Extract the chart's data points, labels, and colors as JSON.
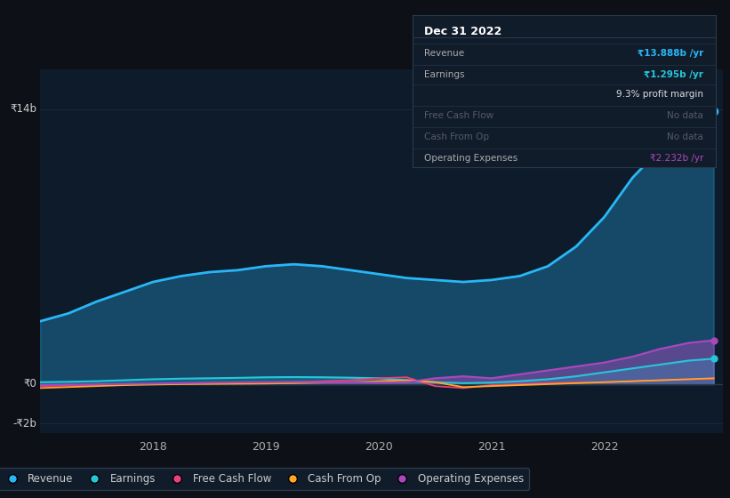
{
  "bg_color": "#0d1117",
  "chart_bg": "#0d1b2a",
  "grid_color": "#1a2a3a",
  "revenue_color": "#29b6f6",
  "earnings_color": "#26c6da",
  "fcf_color": "#ec407a",
  "cashfromop_color": "#ffa726",
  "opex_color": "#ab47bc",
  "legend_labels": [
    "Revenue",
    "Earnings",
    "Free Cash Flow",
    "Cash From Op",
    "Operating Expenses"
  ],
  "legend_colors": [
    "#29b6f6",
    "#26c6da",
    "#ec407a",
    "#ffa726",
    "#ab47bc"
  ],
  "time_points": [
    2017.0,
    2017.25,
    2017.5,
    2017.75,
    2018.0,
    2018.25,
    2018.5,
    2018.75,
    2019.0,
    2019.25,
    2019.5,
    2019.75,
    2020.0,
    2020.25,
    2020.5,
    2020.75,
    2021.0,
    2021.25,
    2021.5,
    2021.75,
    2022.0,
    2022.25,
    2022.5,
    2022.75,
    2022.97
  ],
  "revenue": [
    3200000000,
    3600000000,
    4200000000,
    4700000000,
    5200000000,
    5500000000,
    5700000000,
    5800000000,
    6000000000,
    6100000000,
    6000000000,
    5800000000,
    5600000000,
    5400000000,
    5300000000,
    5200000000,
    5300000000,
    5500000000,
    6000000000,
    7000000000,
    8500000000,
    10500000000,
    12000000000,
    13500000000,
    13888000000
  ],
  "earnings": [
    100000000,
    120000000,
    150000000,
    200000000,
    250000000,
    280000000,
    300000000,
    320000000,
    350000000,
    360000000,
    350000000,
    330000000,
    300000000,
    200000000,
    100000000,
    50000000,
    80000000,
    150000000,
    250000000,
    400000000,
    600000000,
    800000000,
    1000000000,
    1200000000,
    1295000000
  ],
  "free_cash_flow": [
    -100000000,
    -80000000,
    -50000000,
    -20000000,
    0,
    20000000,
    30000000,
    40000000,
    50000000,
    100000000,
    150000000,
    200000000,
    300000000,
    350000000,
    -100000000,
    -200000000,
    -50000000,
    0,
    50000000,
    80000000,
    100000000,
    150000000,
    200000000,
    250000000,
    270000000
  ],
  "cash_from_op": [
    -200000000,
    -150000000,
    -100000000,
    -50000000,
    -20000000,
    0,
    10000000,
    20000000,
    30000000,
    50000000,
    80000000,
    100000000,
    150000000,
    200000000,
    100000000,
    -150000000,
    -100000000,
    -50000000,
    0,
    50000000,
    100000000,
    150000000,
    200000000,
    250000000,
    300000000
  ],
  "operating_expenses": [
    -50000000,
    -30000000,
    -10000000,
    10000000,
    30000000,
    50000000,
    70000000,
    90000000,
    100000000,
    110000000,
    100000000,
    90000000,
    80000000,
    100000000,
    300000000,
    400000000,
    300000000,
    500000000,
    700000000,
    900000000,
    1100000000,
    1400000000,
    1800000000,
    2100000000,
    2232000000
  ],
  "tooltip": {
    "title": "Dec 31 2022",
    "bg": "#111c2b",
    "border": "#2a3a4a",
    "title_color": "#ffffff",
    "rows": [
      {
        "label": "Revenue",
        "value": "₹13.888b /yr",
        "value_color": "#29b6f6",
        "label_color": "#aaaaaa",
        "bold": true
      },
      {
        "label": "Earnings",
        "value": "₹1.295b /yr",
        "value_color": "#26c6da",
        "label_color": "#aaaaaa",
        "bold": true
      },
      {
        "label": "",
        "value": "9.3% profit margin",
        "value_color": "#dddddd",
        "label_color": "#aaaaaa",
        "bold": false
      },
      {
        "label": "Free Cash Flow",
        "value": "No data",
        "value_color": "#555a66",
        "label_color": "#555a66",
        "bold": false
      },
      {
        "label": "Cash From Op",
        "value": "No data",
        "value_color": "#555a66",
        "label_color": "#555a66",
        "bold": false
      },
      {
        "label": "Operating Expenses",
        "value": "₹2.232b /yr",
        "value_color": "#ab47bc",
        "label_color": "#aaaaaa",
        "bold": false
      }
    ]
  },
  "dot_x": 2022.97,
  "revenue_dot_y": 13888000000,
  "earnings_dot_y": 1295000000,
  "opex_dot_y": 2232000000,
  "ylim": [
    -2500000000,
    16000000000
  ],
  "xlim": [
    2017.0,
    2023.05
  ],
  "ytick_vals": [
    -2000000000,
    0,
    14000000000
  ],
  "ytick_labels": [
    "-₹2b",
    "₹0",
    "₹14b"
  ],
  "xticks": [
    2018,
    2019,
    2020,
    2021,
    2022
  ]
}
